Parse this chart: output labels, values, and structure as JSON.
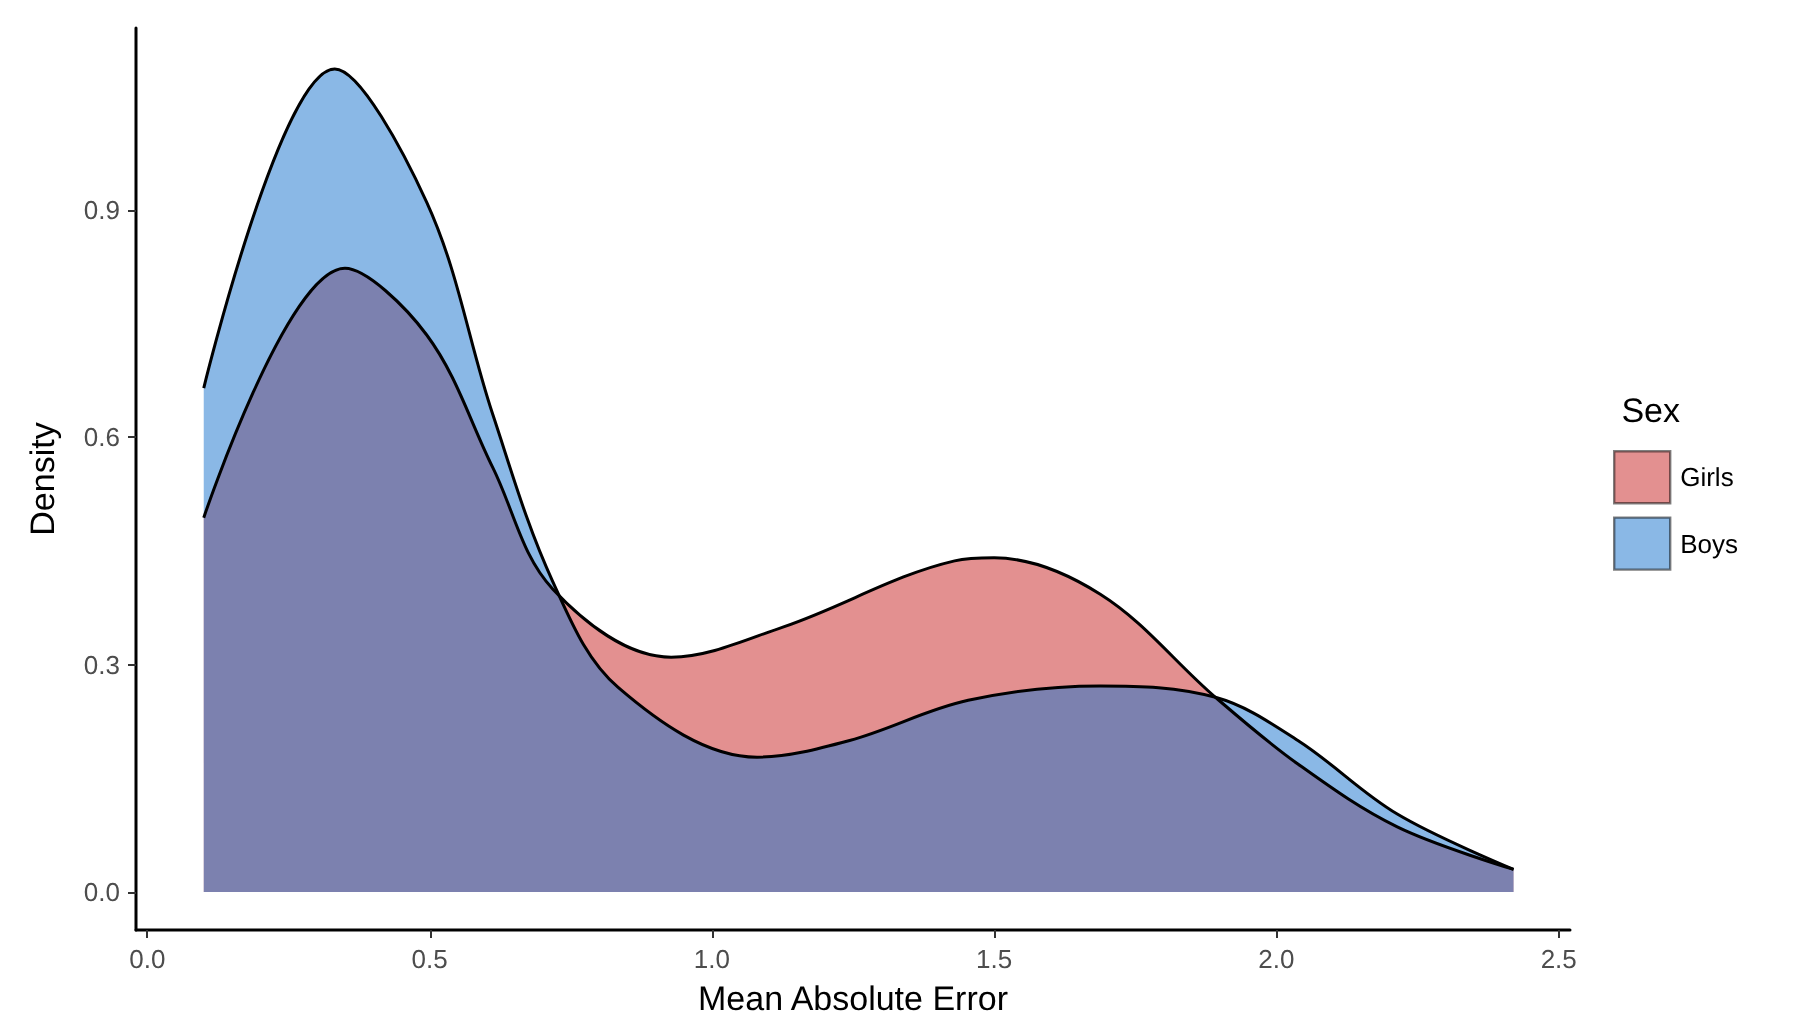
{
  "chart_data": {
    "type": "area",
    "xlabel": "Mean Absolute Error",
    "ylabel": "Density",
    "legend_title": "Sex",
    "legend": "right",
    "grid": false,
    "xlim": [
      -0.02,
      2.52
    ],
    "xticks": [
      {
        "value": 0,
        "label": "0.0"
      },
      0.5,
      {
        "value": 1,
        "label": "1.0"
      },
      1.5,
      {
        "value": 2,
        "label": "2.0"
      },
      2.5
    ],
    "ylim": [
      -0.05,
      1.14
    ],
    "yticks": [
      {
        "value": 0,
        "label": "0.0"
      },
      0.3,
      0.6,
      0.9
    ],
    "series": [
      {
        "name": "Girls",
        "color": "#c72121",
        "x": [
          0.1,
          0.35,
          0.495,
          0.612,
          0.718,
          0.928,
          1.127,
          1.43,
          1.5,
          1.688,
          1.892,
          2.038,
          2.214,
          2.42
        ],
        "values": [
          0.494,
          0.823,
          0.735,
          0.56,
          0.4,
          0.31,
          0.35,
          0.437,
          0.441,
          0.393,
          0.257,
          0.169,
          0.086,
          0.03
        ]
      },
      {
        "name": "Boys",
        "color": "#1571cd",
        "x": [
          0.1,
          0.332,
          0.495,
          0.612,
          0.718,
          0.834,
          1.08,
          1.244,
          1.454,
          1.688,
          1.892,
          2.038,
          2.214,
          2.42
        ],
        "values": [
          0.665,
          1.086,
          0.91,
          0.63,
          0.41,
          0.27,
          0.178,
          0.2,
          0.253,
          0.272,
          0.257,
          0.2,
          0.103,
          0.03
        ]
      }
    ]
  }
}
